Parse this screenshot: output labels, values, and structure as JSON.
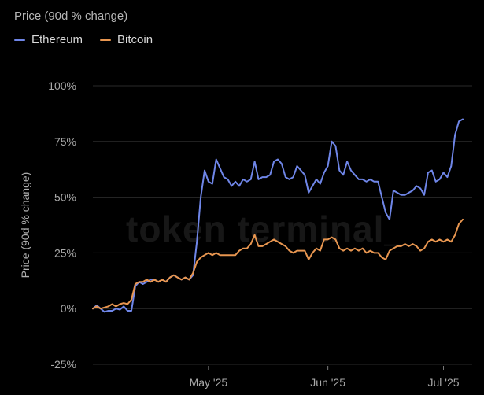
{
  "header": {
    "title": "Price (90d % change)"
  },
  "watermark": "token terminal_",
  "chart_data": {
    "type": "line",
    "ylabel": "Price (90d % change)",
    "y_ticks": [
      -25,
      0,
      25,
      50,
      75,
      100
    ],
    "y_tick_labels": [
      "-25%",
      "0%",
      "25%",
      "50%",
      "75%",
      "100%"
    ],
    "ylim": [
      -25,
      100
    ],
    "x_ticks": [
      {
        "label": "May '25",
        "day": 30
      },
      {
        "label": "Jun '25",
        "day": 61
      },
      {
        "label": "Jul '25",
        "day": 91
      }
    ],
    "grid": "horizontal",
    "legend_position": "top-left",
    "series": [
      {
        "name": "Ethereum",
        "color": "#6f86e8",
        "points": [
          [
            0,
            0
          ],
          [
            1,
            1.5
          ],
          [
            2,
            0
          ],
          [
            3,
            -1.5
          ],
          [
            4,
            -1
          ],
          [
            5,
            -1
          ],
          [
            6,
            0
          ],
          [
            7,
            -0.5
          ],
          [
            8,
            1
          ],
          [
            9,
            -1
          ],
          [
            10,
            -1
          ],
          [
            11,
            10
          ],
          [
            12,
            12
          ],
          [
            13,
            11
          ],
          [
            14,
            12
          ],
          [
            15,
            13
          ],
          [
            16,
            13
          ],
          [
            17,
            12
          ],
          [
            18,
            13
          ],
          [
            19,
            12
          ],
          [
            20,
            14
          ],
          [
            21,
            15
          ],
          [
            22,
            14
          ],
          [
            23,
            13
          ],
          [
            24,
            14
          ],
          [
            25,
            13
          ],
          [
            26,
            15
          ],
          [
            27,
            30
          ],
          [
            28,
            50
          ],
          [
            29,
            62
          ],
          [
            30,
            57
          ],
          [
            31,
            56
          ],
          [
            32,
            67
          ],
          [
            33,
            63
          ],
          [
            34,
            59
          ],
          [
            35,
            58
          ],
          [
            36,
            55
          ],
          [
            37,
            57
          ],
          [
            38,
            55
          ],
          [
            39,
            58
          ],
          [
            40,
            57
          ],
          [
            41,
            58
          ],
          [
            42,
            66
          ],
          [
            43,
            58
          ],
          [
            44,
            59
          ],
          [
            45,
            59
          ],
          [
            46,
            60
          ],
          [
            47,
            66
          ],
          [
            48,
            67
          ],
          [
            49,
            65
          ],
          [
            50,
            59
          ],
          [
            51,
            58
          ],
          [
            52,
            59
          ],
          [
            53,
            64
          ],
          [
            54,
            62
          ],
          [
            55,
            60
          ],
          [
            56,
            52
          ],
          [
            57,
            55
          ],
          [
            58,
            58
          ],
          [
            59,
            56
          ],
          [
            60,
            61
          ],
          [
            61,
            64
          ],
          [
            62,
            75
          ],
          [
            63,
            73
          ],
          [
            64,
            62
          ],
          [
            65,
            60
          ],
          [
            66,
            66
          ],
          [
            67,
            62
          ],
          [
            68,
            60
          ],
          [
            69,
            58
          ],
          [
            70,
            58
          ],
          [
            71,
            57
          ],
          [
            72,
            58
          ],
          [
            73,
            57
          ],
          [
            74,
            57
          ],
          [
            75,
            50
          ],
          [
            76,
            43
          ],
          [
            77,
            40
          ],
          [
            78,
            53
          ],
          [
            79,
            52
          ],
          [
            80,
            51
          ],
          [
            81,
            51
          ],
          [
            82,
            52
          ],
          [
            83,
            53
          ],
          [
            84,
            55
          ],
          [
            85,
            54
          ],
          [
            86,
            51
          ],
          [
            87,
            61
          ],
          [
            88,
            62
          ],
          [
            89,
            57
          ],
          [
            90,
            58
          ],
          [
            91,
            61
          ],
          [
            92,
            59
          ],
          [
            93,
            64
          ],
          [
            94,
            78
          ],
          [
            95,
            84
          ],
          [
            96,
            85
          ]
        ]
      },
      {
        "name": "Bitcoin",
        "color": "#e89650",
        "points": [
          [
            0,
            0
          ],
          [
            1,
            1
          ],
          [
            2,
            0
          ],
          [
            3,
            0.5
          ],
          [
            4,
            1
          ],
          [
            5,
            2
          ],
          [
            6,
            1
          ],
          [
            7,
            2
          ],
          [
            8,
            2.5
          ],
          [
            9,
            2
          ],
          [
            10,
            4
          ],
          [
            11,
            11
          ],
          [
            12,
            12
          ],
          [
            13,
            12
          ],
          [
            14,
            13
          ],
          [
            15,
            12
          ],
          [
            16,
            13
          ],
          [
            17,
            12
          ],
          [
            18,
            13
          ],
          [
            19,
            12
          ],
          [
            20,
            14
          ],
          [
            21,
            15
          ],
          [
            22,
            14
          ],
          [
            23,
            13
          ],
          [
            24,
            14
          ],
          [
            25,
            13
          ],
          [
            26,
            16
          ],
          [
            27,
            21
          ],
          [
            28,
            23
          ],
          [
            29,
            24
          ],
          [
            30,
            25
          ],
          [
            31,
            24
          ],
          [
            32,
            25
          ],
          [
            33,
            24
          ],
          [
            34,
            24
          ],
          [
            35,
            24
          ],
          [
            36,
            24
          ],
          [
            37,
            24
          ],
          [
            38,
            26
          ],
          [
            39,
            27
          ],
          [
            40,
            27
          ],
          [
            41,
            29
          ],
          [
            42,
            33
          ],
          [
            43,
            28
          ],
          [
            44,
            28
          ],
          [
            45,
            29
          ],
          [
            46,
            30
          ],
          [
            47,
            31
          ],
          [
            48,
            30
          ],
          [
            49,
            29
          ],
          [
            50,
            28
          ],
          [
            51,
            26
          ],
          [
            52,
            25
          ],
          [
            53,
            26
          ],
          [
            54,
            26
          ],
          [
            55,
            26
          ],
          [
            56,
            22
          ],
          [
            57,
            25
          ],
          [
            58,
            27
          ],
          [
            59,
            26
          ],
          [
            60,
            31
          ],
          [
            61,
            31
          ],
          [
            62,
            32
          ],
          [
            63,
            31
          ],
          [
            64,
            27
          ],
          [
            65,
            26
          ],
          [
            66,
            27
          ],
          [
            67,
            26
          ],
          [
            68,
            27
          ],
          [
            69,
            26
          ],
          [
            70,
            27
          ],
          [
            71,
            25
          ],
          [
            72,
            26
          ],
          [
            73,
            25
          ],
          [
            74,
            25
          ],
          [
            75,
            23
          ],
          [
            76,
            22
          ],
          [
            77,
            26
          ],
          [
            78,
            27
          ],
          [
            79,
            28
          ],
          [
            80,
            28
          ],
          [
            81,
            29
          ],
          [
            82,
            28
          ],
          [
            83,
            29
          ],
          [
            84,
            28
          ],
          [
            85,
            26
          ],
          [
            86,
            27
          ],
          [
            87,
            30
          ],
          [
            88,
            31
          ],
          [
            89,
            30
          ],
          [
            90,
            31
          ],
          [
            91,
            30
          ],
          [
            92,
            31
          ],
          [
            93,
            30
          ],
          [
            94,
            33
          ],
          [
            95,
            38
          ],
          [
            96,
            40
          ]
        ]
      }
    ]
  }
}
